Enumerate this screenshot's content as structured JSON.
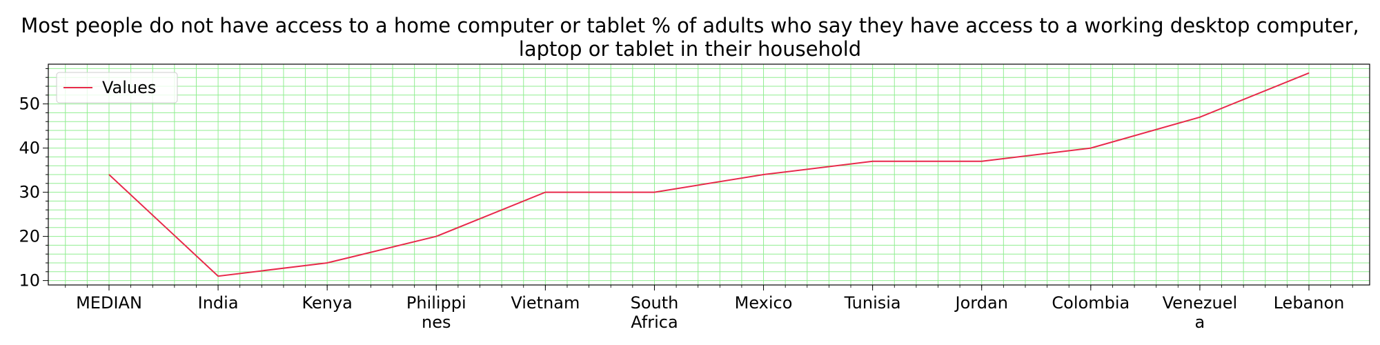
{
  "chart_data": {
    "type": "line",
    "title": "Most people do not have access to a home computer or tablet % of adults who say they have access to a working desktop computer, laptop or tablet in their household",
    "categories": [
      "MEDIAN",
      "India",
      "Kenya",
      "Philippines",
      "Vietnam",
      "South Africa",
      "Mexico",
      "Tunisia",
      "Jordan",
      "Colombia",
      "Venezuela",
      "Lebanon"
    ],
    "category_tick_lines": [
      [
        "MEDIAN"
      ],
      [
        "India"
      ],
      [
        "Kenya"
      ],
      [
        "Philippi",
        "nes"
      ],
      [
        "Vietnam"
      ],
      [
        "South",
        "Africa"
      ],
      [
        "Mexico"
      ],
      [
        "Tunisia"
      ],
      [
        "Jordan"
      ],
      [
        "Colombia"
      ],
      [
        "Venezuel",
        "a"
      ],
      [
        "Lebanon"
      ]
    ],
    "series": [
      {
        "name": "Values",
        "values": [
          34,
          11,
          14,
          20,
          30,
          30,
          34,
          37,
          37,
          40,
          47,
          57
        ],
        "color": "#e8294a"
      }
    ],
    "xlabel": "",
    "ylabel": "",
    "ylim": [
      9,
      59
    ],
    "yticks": [
      10,
      20,
      30,
      40,
      50
    ],
    "grid": true,
    "grid_color": "#90ee90",
    "legend_position": "top-left"
  }
}
